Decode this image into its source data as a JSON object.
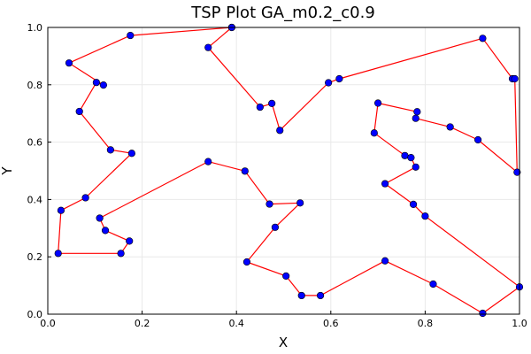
{
  "chart_data": {
    "type": "scatter",
    "title": "TSP Plot GA_m0.2_c0.9",
    "xlabel": "X",
    "ylabel": "Y",
    "xlim": [
      0,
      1
    ],
    "ylim": [
      0,
      1
    ],
    "xticks": [
      "0.0",
      "0.2",
      "0.4",
      "0.6",
      "0.8",
      "1.0"
    ],
    "yticks": [
      "0.0",
      "0.2",
      "0.4",
      "0.6",
      "0.8",
      "1.0"
    ],
    "grid": true,
    "legend": "none",
    "colors": {
      "route_line": "#ff0000",
      "points": "#0000ff"
    },
    "route": [
      [
        0.39,
        1.0
      ],
      [
        0.34,
        0.93
      ],
      [
        0.45,
        0.722
      ],
      [
        0.475,
        0.735
      ],
      [
        0.492,
        0.641
      ],
      [
        0.595,
        0.807
      ],
      [
        0.618,
        0.821
      ],
      [
        0.922,
        0.962
      ],
      [
        0.985,
        0.821
      ],
      [
        0.99,
        0.821
      ],
      [
        0.995,
        0.495
      ],
      [
        0.912,
        0.608
      ],
      [
        0.853,
        0.653
      ],
      [
        0.78,
        0.683
      ],
      [
        0.783,
        0.706
      ],
      [
        0.7,
        0.736
      ],
      [
        0.692,
        0.632
      ],
      [
        0.757,
        0.553
      ],
      [
        0.77,
        0.546
      ],
      [
        0.78,
        0.513
      ],
      [
        0.715,
        0.455
      ],
      [
        0.775,
        0.383
      ],
      [
        0.8,
        0.342
      ],
      [
        1.0,
        0.095
      ],
      [
        0.922,
        0.003
      ],
      [
        0.817,
        0.105
      ],
      [
        0.715,
        0.186
      ],
      [
        0.578,
        0.065
      ],
      [
        0.538,
        0.065
      ],
      [
        0.505,
        0.133
      ],
      [
        0.422,
        0.182
      ],
      [
        0.482,
        0.303
      ],
      [
        0.535,
        0.388
      ],
      [
        0.47,
        0.384
      ],
      [
        0.418,
        0.499
      ],
      [
        0.34,
        0.532
      ],
      [
        0.11,
        0.335
      ],
      [
        0.122,
        0.292
      ],
      [
        0.173,
        0.255
      ],
      [
        0.155,
        0.212
      ],
      [
        0.022,
        0.212
      ],
      [
        0.028,
        0.362
      ],
      [
        0.08,
        0.406
      ],
      [
        0.178,
        0.561
      ],
      [
        0.133,
        0.573
      ],
      [
        0.067,
        0.707
      ],
      [
        0.103,
        0.808
      ],
      [
        0.118,
        0.799
      ],
      [
        0.045,
        0.876
      ],
      [
        0.175,
        0.972
      ],
      [
        0.39,
        1.0
      ]
    ]
  }
}
